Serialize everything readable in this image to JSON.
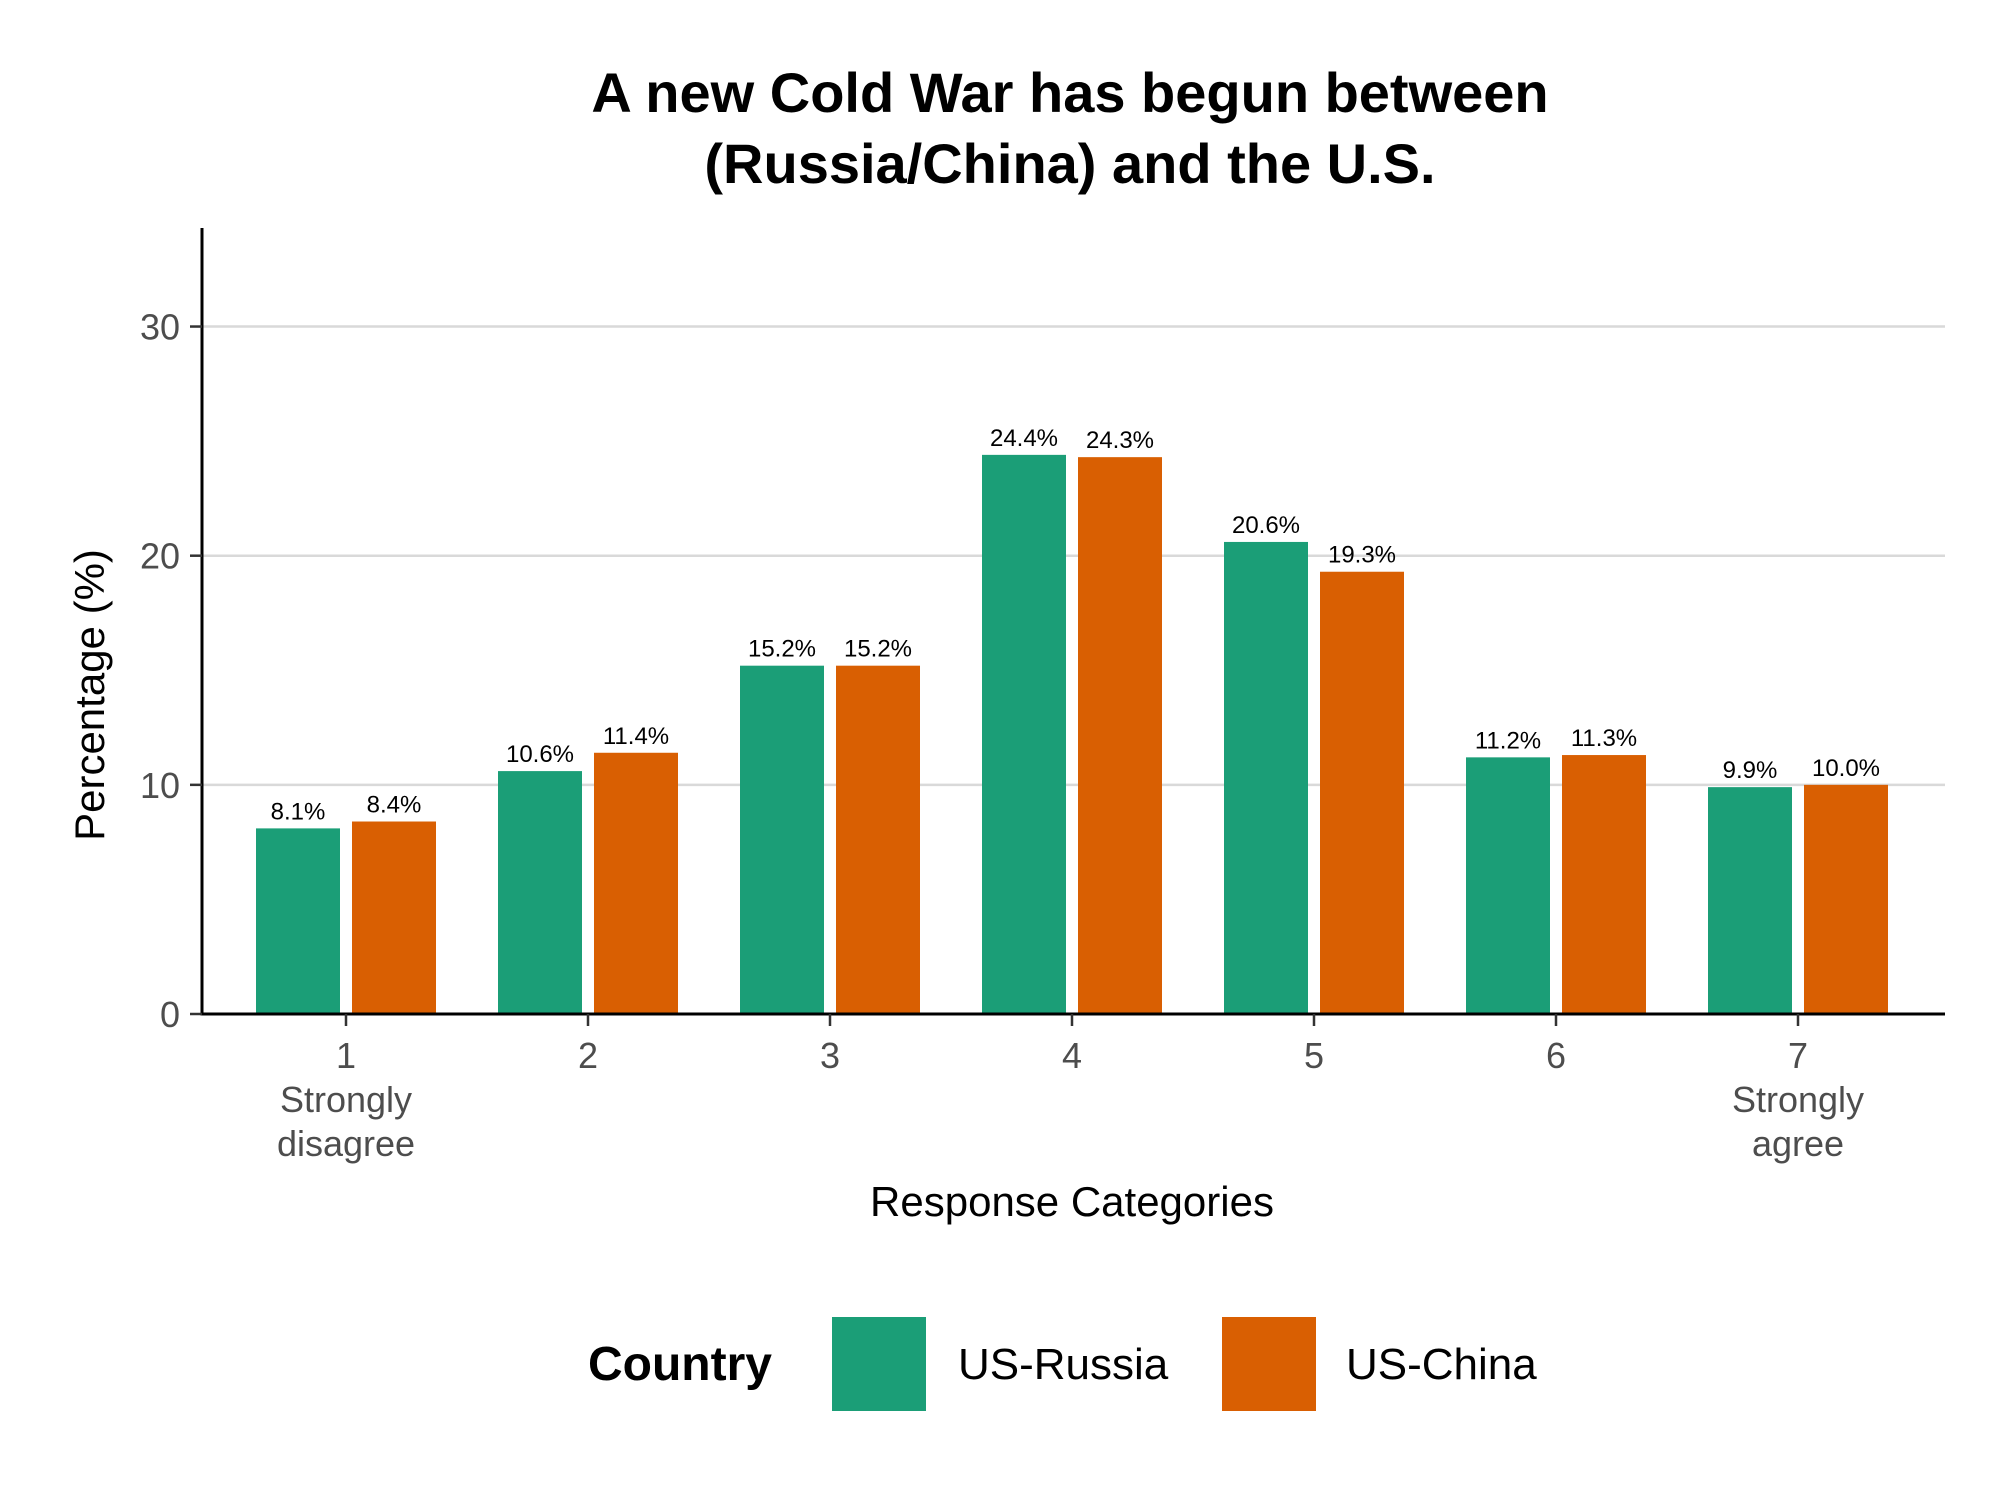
{
  "chart_data": {
    "type": "bar",
    "title_lines": [
      "A new Cold War has begun between",
      "(Russia/China) and the U.S."
    ],
    "xlabel": "Response Categories",
    "ylabel": "Percentage (%)",
    "ylim": [
      0,
      34.3
    ],
    "yticks": [
      0,
      10,
      20,
      30
    ],
    "grid": "horizontal major",
    "categories": [
      "1",
      "2",
      "3",
      "4",
      "5",
      "6",
      "7"
    ],
    "category_sublabels": {
      "1": [
        "Strongly",
        "disagree"
      ],
      "7": [
        "Strongly",
        "agree"
      ]
    },
    "series": [
      {
        "name": "US-Russia",
        "color": "#1b9e77",
        "values": [
          8.1,
          10.6,
          15.2,
          24.4,
          20.6,
          11.2,
          9.9
        ],
        "labels": [
          "8.1%",
          "10.6%",
          "15.2%",
          "24.4%",
          "20.6%",
          "11.2%",
          "9.9%"
        ]
      },
      {
        "name": "US-China",
        "color": "#d95f02",
        "values": [
          8.4,
          11.4,
          15.2,
          24.3,
          19.3,
          11.3,
          10.0
        ],
        "labels": [
          "8.4%",
          "11.4%",
          "15.2%",
          "24.3%",
          "19.3%",
          "11.3%",
          "10.0%"
        ]
      }
    ],
    "legend": {
      "title": "Country",
      "placement": "bottom"
    }
  }
}
